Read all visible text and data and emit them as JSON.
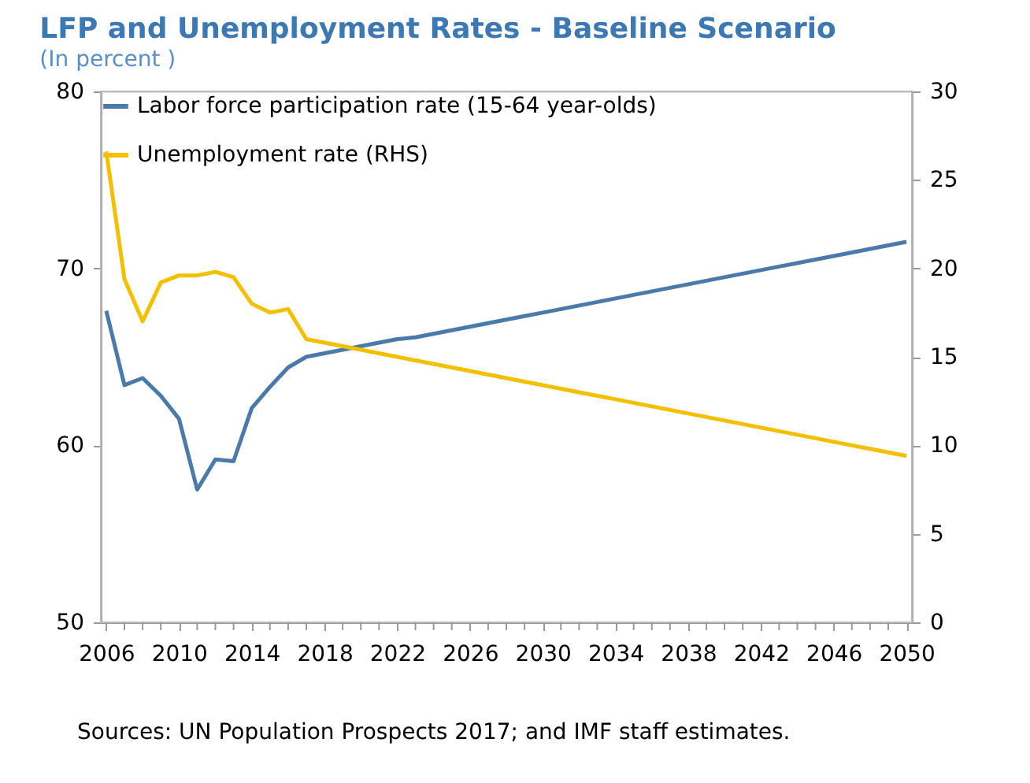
{
  "chart_data": {
    "type": "line",
    "title": "LFP and Unemployment Rates - Baseline Scenario",
    "subtitle": "(In percent )",
    "x": [
      2006,
      2007,
      2008,
      2009,
      2010,
      2011,
      2012,
      2013,
      2014,
      2015,
      2016,
      2017,
      2018,
      2019,
      2020,
      2021,
      2022,
      2023,
      2024,
      2025,
      2026,
      2027,
      2028,
      2029,
      2030,
      2031,
      2032,
      2033,
      2034,
      2035,
      2036,
      2037,
      2038,
      2039,
      2040,
      2041,
      2042,
      2043,
      2044,
      2045,
      2046,
      2047,
      2048,
      2049,
      2050
    ],
    "series": [
      {
        "name": "Labor force participation rate (15-64 year-olds)",
        "color": "#4a7aaa",
        "values": [
          67.6,
          63.4,
          63.8,
          62.8,
          61.5,
          57.5,
          59.2,
          59.1,
          62.1,
          63.3,
          64.4,
          65.0,
          65.2,
          65.4,
          65.6,
          65.8,
          66.0,
          66.1,
          66.3,
          66.5,
          66.7,
          66.9,
          67.1,
          67.3,
          67.5,
          67.7,
          67.9,
          68.1,
          68.3,
          68.5,
          68.7,
          68.9,
          69.1,
          69.3,
          69.5,
          69.7,
          69.9,
          70.1,
          70.3,
          70.5,
          70.7,
          70.9,
          71.1,
          71.3,
          71.5
        ]
      },
      {
        "name": "Unemployment rate (RHS)",
        "color": "#f2c000",
        "axis": "y2",
        "values": [
          26.6,
          19.4,
          17.0,
          19.2,
          19.6,
          19.6,
          19.8,
          19.5,
          18.0,
          17.5,
          17.7,
          16.0,
          15.8,
          15.6,
          15.4,
          15.2,
          15.0,
          14.8,
          14.6,
          14.4,
          14.2,
          14.0,
          13.8,
          13.6,
          13.4,
          13.2,
          13.0,
          12.8,
          12.6,
          12.4,
          12.2,
          12.0,
          11.8,
          11.6,
          11.4,
          11.2,
          11.0,
          10.8,
          10.6,
          10.4,
          10.2,
          10.0,
          9.8,
          9.6,
          9.4
        ]
      }
    ],
    "xlim": [
      2005.7,
      2050.3
    ],
    "xticks": [
      2006,
      {
        "value": 2007,
        "label": null
      },
      {
        "value": 2008,
        "label": null
      },
      {
        "value": 2009,
        "label": null
      },
      2010,
      {
        "value": 2011,
        "label": null
      },
      {
        "value": 2012,
        "label": null
      },
      {
        "value": 2013,
        "label": null
      },
      2014,
      {
        "value": 2015,
        "label": null
      },
      {
        "value": 2016,
        "label": null
      },
      {
        "value": 2017,
        "label": null
      },
      2018,
      {
        "value": 2019,
        "label": null
      },
      {
        "value": 2020,
        "label": null
      },
      {
        "value": 2021,
        "label": null
      },
      2022,
      {
        "value": 2023,
        "label": null
      },
      {
        "value": 2024,
        "label": null
      },
      {
        "value": 2025,
        "label": null
      },
      2026,
      {
        "value": 2027,
        "label": null
      },
      {
        "value": 2028,
        "label": null
      },
      {
        "value": 2029,
        "label": null
      },
      2030,
      {
        "value": 2031,
        "label": null
      },
      {
        "value": 2032,
        "label": null
      },
      {
        "value": 2033,
        "label": null
      },
      2034,
      {
        "value": 2035,
        "label": null
      },
      {
        "value": 2036,
        "label": null
      },
      {
        "value": 2037,
        "label": null
      },
      2038,
      {
        "value": 2039,
        "label": null
      },
      {
        "value": 2040,
        "label": null
      },
      {
        "value": 2041,
        "label": null
      },
      2042,
      {
        "value": 2043,
        "label": null
      },
      {
        "value": 2044,
        "label": null
      },
      {
        "value": 2045,
        "label": null
      },
      2046,
      {
        "value": 2047,
        "label": null
      },
      {
        "value": 2048,
        "label": null
      },
      {
        "value": 2049,
        "label": null
      },
      2050
    ],
    "ylim": [
      50,
      80
    ],
    "yticks": [
      50,
      60,
      70,
      80
    ],
    "y2lim": [
      0,
      30
    ],
    "y2ticks": [
      0,
      5,
      10,
      15,
      20,
      25,
      30
    ],
    "grid": false,
    "legend": "top left",
    "line_style": "solid",
    "marker": "none",
    "annotations": [
      "Sources: UN Population Prospects 2017; and IMF staff estimates."
    ]
  }
}
